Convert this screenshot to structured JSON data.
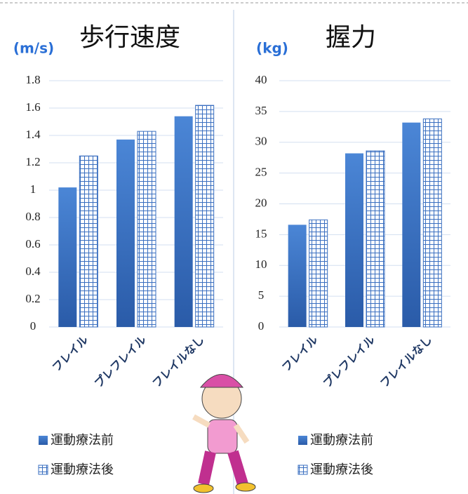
{
  "chart_data": [
    {
      "type": "bar",
      "title": "歩行速度",
      "unit_label": "(m/s)",
      "categories": [
        "フレイル",
        "プレフレイル",
        "フレイルなし"
      ],
      "series": [
        {
          "name": "運動療法前",
          "color": "#3a6fc0",
          "values": [
            1.02,
            1.37,
            1.54
          ]
        },
        {
          "name": "運動療法後",
          "color": "#3a6fc0",
          "pattern": "grid",
          "values": [
            1.25,
            1.43,
            1.62
          ]
        }
      ],
      "ylim": [
        0,
        1.8
      ],
      "yticks": [
        0,
        0.2,
        0.4,
        0.6,
        0.8,
        1,
        1.2,
        1.4,
        1.6,
        1.8
      ],
      "grid": true
    },
    {
      "type": "bar",
      "title": "握力",
      "unit_label": "(kg)",
      "categories": [
        "フレイル",
        "プレフレイル",
        "フレイルなし"
      ],
      "series": [
        {
          "name": "運動療法前",
          "color": "#3a6fc0",
          "values": [
            16.6,
            28.2,
            33.2
          ]
        },
        {
          "name": "運動療法後",
          "color": "#3a6fc0",
          "pattern": "grid",
          "values": [
            17.4,
            28.6,
            33.8
          ]
        }
      ],
      "ylim": [
        0,
        40
      ],
      "yticks": [
        0,
        5,
        10,
        15,
        20,
        25,
        30,
        35,
        40
      ],
      "grid": true
    }
  ]
}
